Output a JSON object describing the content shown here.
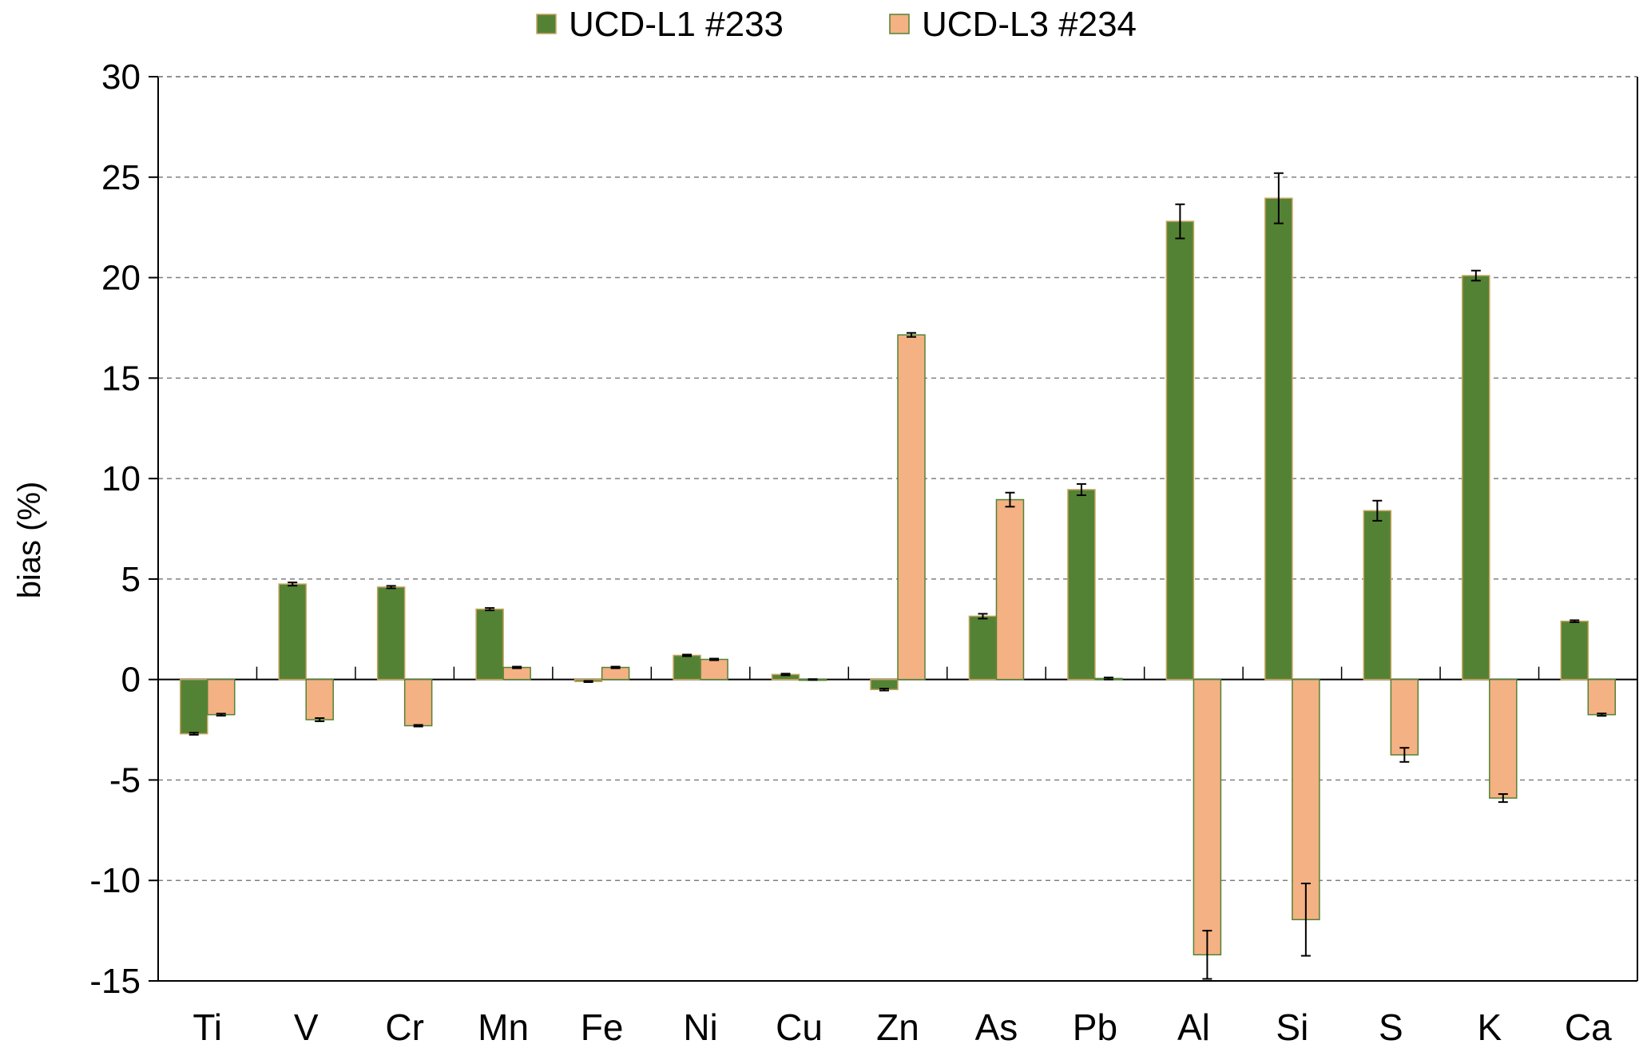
{
  "chart_data": {
    "type": "bar",
    "title": "",
    "xlabel": "",
    "ylabel": "bias (%)",
    "ylim": [
      -15,
      30
    ],
    "yticks": [
      30,
      25,
      20,
      15,
      10,
      5,
      0,
      -5,
      -10,
      -15
    ],
    "grid": "horizontal dashed",
    "legend_position": "top",
    "categories": [
      "Ti",
      "V",
      "Cr",
      "Mn",
      "Fe",
      "Ni",
      "Cu",
      "Zn",
      "As",
      "Pb",
      "Al",
      "Si",
      "S",
      "K",
      "Ca"
    ],
    "series": [
      {
        "name": "UCD-L1 #233",
        "color": "#548235",
        "values": [
          -2.7,
          4.75,
          4.6,
          3.5,
          -0.1,
          1.2,
          0.25,
          -0.5,
          3.15,
          9.45,
          22.8,
          23.95,
          8.4,
          20.1,
          2.9
        ],
        "errors": [
          0.05,
          0.08,
          0.06,
          0.06,
          0.03,
          0.04,
          0.04,
          0.05,
          0.12,
          0.28,
          0.85,
          1.25,
          0.5,
          0.25,
          0.05
        ]
      },
      {
        "name": "UCD-L3 #234",
        "color": "#f4b183",
        "values": [
          -1.75,
          -2.0,
          -2.3,
          0.6,
          0.6,
          1.0,
          0.0,
          17.15,
          8.95,
          0.05,
          -13.7,
          -11.95,
          -3.75,
          -5.9,
          -1.75
        ],
        "errors": [
          0.05,
          0.08,
          0.04,
          0.04,
          0.04,
          0.04,
          0.02,
          0.1,
          0.35,
          0.05,
          1.2,
          1.8,
          0.35,
          0.2,
          0.06
        ]
      }
    ]
  }
}
